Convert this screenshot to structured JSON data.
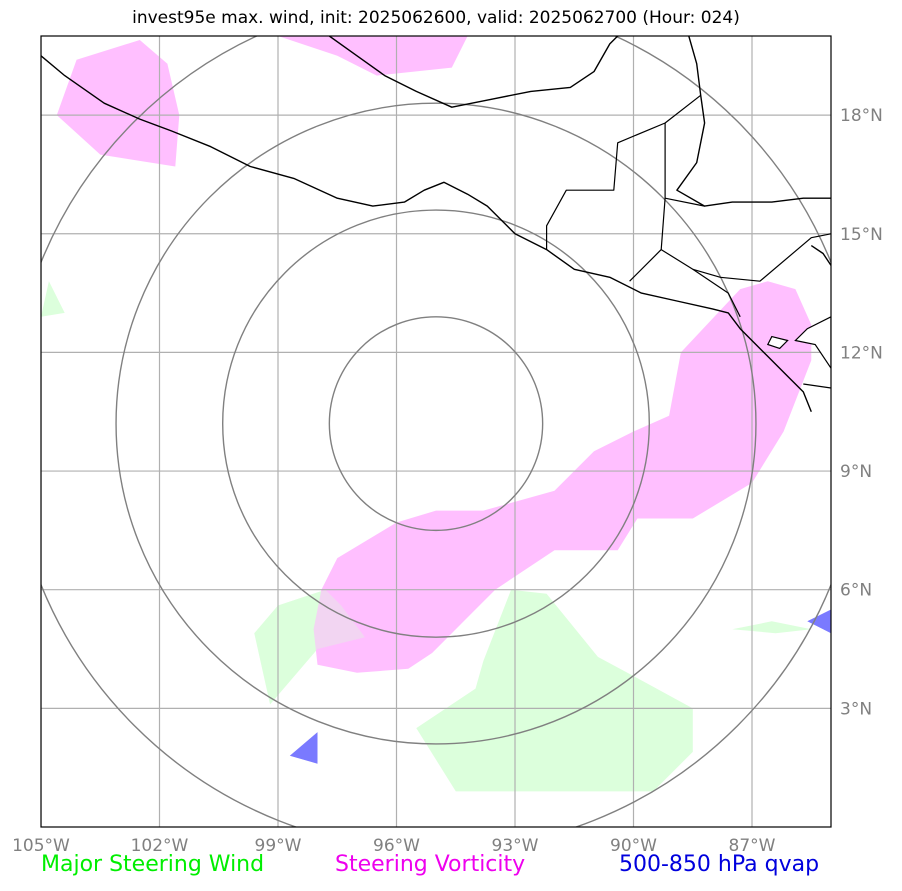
{
  "title": "invest95e max. wind, init: 2025062600, valid: 2025062700 (Hour: 024)",
  "colors": {
    "steering_wind_fill": "#dcffdc",
    "steering_vorticity_fill": "#ffbcff",
    "qvap_fill": "#7a7aff",
    "legend_wind": "#00ee00",
    "legend_vorticity": "#ee00ee",
    "legend_qvap": "#0000dd",
    "gridline": "#b0b0b0",
    "range_rings": "#808080",
    "coastline": "#000000",
    "tick_labels": "#808080"
  },
  "map": {
    "projection": "PlateCarree",
    "lon_range": [
      -105,
      -85
    ],
    "lat_range": [
      0,
      20
    ],
    "lon_ticks": [
      {
        "value": -105,
        "label": "105°W"
      },
      {
        "value": -102,
        "label": "102°W"
      },
      {
        "value": -99,
        "label": "99°W"
      },
      {
        "value": -96,
        "label": "96°W"
      },
      {
        "value": -93,
        "label": "93°W"
      },
      {
        "value": -90,
        "label": "90°W"
      },
      {
        "value": -87,
        "label": "87°W"
      }
    ],
    "lat_ticks": [
      {
        "value": 3,
        "label": "3°N"
      },
      {
        "value": 6,
        "label": "6°N"
      },
      {
        "value": 9,
        "label": "9°N"
      },
      {
        "value": 12,
        "label": "12°N"
      },
      {
        "value": 15,
        "label": "15°N"
      },
      {
        "value": 18,
        "label": "18°N"
      }
    ],
    "grid": true,
    "storm_center": {
      "lon": -95,
      "lat": 10.2
    },
    "range_rings_deg": [
      2.7,
      5.4,
      8.1,
      10.8
    ],
    "steering_wind_regions": [
      [
        [
          -93.1,
          6.0
        ],
        [
          -92.2,
          5.9
        ],
        [
          -90.9,
          4.3
        ],
        [
          -89.6,
          3.6
        ],
        [
          -88.5,
          3.0
        ],
        [
          -88.5,
          1.9
        ],
        [
          -89.5,
          0.9
        ],
        [
          -94.5,
          0.9
        ],
        [
          -95.5,
          2.5
        ],
        [
          -94.0,
          3.5
        ],
        [
          -93.8,
          4.2
        ]
      ],
      [
        [
          -97.8,
          6.0
        ],
        [
          -99.0,
          5.6
        ],
        [
          -99.6,
          4.9
        ],
        [
          -99.2,
          3.1
        ],
        [
          -98.0,
          4.5
        ],
        [
          -96.8,
          4.8
        ],
        [
          -97.4,
          5.6
        ]
      ],
      [
        [
          -104.8,
          13.8
        ],
        [
          -104.4,
          13.0
        ],
        [
          -105,
          12.9
        ]
      ],
      [
        [
          -87.5,
          5.0
        ],
        [
          -86.4,
          4.9
        ],
        [
          -85.5,
          5.0
        ],
        [
          -86.5,
          5.2
        ]
      ]
    ],
    "steering_vorticity_regions": [
      [
        [
          -96.0,
          7.7
        ],
        [
          -95.0,
          8.0
        ],
        [
          -93.8,
          8.0
        ],
        [
          -92.0,
          8.5
        ],
        [
          -91.0,
          9.5
        ],
        [
          -90.0,
          10.0
        ],
        [
          -89.1,
          10.4
        ],
        [
          -88.8,
          12.0
        ],
        [
          -87.3,
          13.6
        ],
        [
          -86.6,
          13.8
        ],
        [
          -85.9,
          13.6
        ],
        [
          -85.5,
          12.7
        ],
        [
          -85.5,
          11.8
        ],
        [
          -86.2,
          10.0
        ],
        [
          -87.0,
          8.7
        ],
        [
          -88.5,
          7.8
        ],
        [
          -89.9,
          7.8
        ],
        [
          -90.4,
          7.0
        ],
        [
          -92.0,
          7.0
        ],
        [
          -93.5,
          6.0
        ],
        [
          -94.2,
          5.3
        ],
        [
          -95.1,
          4.4
        ],
        [
          -95.7,
          4.0
        ],
        [
          -97.0,
          3.9
        ],
        [
          -98.0,
          4.1
        ],
        [
          -98.1,
          5.0
        ],
        [
          -97.9,
          6.0
        ],
        [
          -97.5,
          6.8
        ]
      ],
      [
        [
          -104.6,
          18.0
        ],
        [
          -104.1,
          19.4
        ],
        [
          -102.5,
          19.9
        ],
        [
          -101.8,
          19.3
        ],
        [
          -101.5,
          18.0
        ],
        [
          -101.6,
          16.7
        ],
        [
          -103.5,
          17.0
        ]
      ],
      [
        [
          -99.0,
          20.0
        ],
        [
          -97.5,
          19.5
        ],
        [
          -96.5,
          19.0
        ],
        [
          -94.6,
          19.2
        ],
        [
          -94.2,
          20.0
        ]
      ]
    ],
    "qvap_regions": [
      [
        [
          -98.0,
          2.4
        ],
        [
          -98.7,
          1.8
        ],
        [
          -98.0,
          1.6
        ]
      ],
      [
        [
          -85.6,
          5.2
        ],
        [
          -85.0,
          5.5
        ],
        [
          -85.0,
          4.9
        ]
      ]
    ],
    "coastlines": [
      [
        [
          -105,
          19.5
        ],
        [
          -104.4,
          19.0
        ],
        [
          -103.4,
          18.3
        ],
        [
          -102.5,
          17.9
        ],
        [
          -101.7,
          17.6
        ],
        [
          -100.7,
          17.2
        ],
        [
          -99.7,
          16.7
        ],
        [
          -98.6,
          16.4
        ],
        [
          -97.5,
          15.9
        ],
        [
          -96.6,
          15.7
        ],
        [
          -95.8,
          15.8
        ],
        [
          -95.3,
          16.1
        ],
        [
          -94.8,
          16.3
        ],
        [
          -94.2,
          16.0
        ],
        [
          -93.7,
          15.7
        ],
        [
          -93.0,
          15.0
        ],
        [
          -92.2,
          14.6
        ],
        [
          -91.5,
          14.1
        ],
        [
          -90.6,
          13.9
        ],
        [
          -89.8,
          13.5
        ],
        [
          -88.9,
          13.3
        ],
        [
          -88.0,
          13.1
        ],
        [
          -87.6,
          13.0
        ],
        [
          -87.3,
          12.6
        ],
        [
          -86.6,
          11.9
        ],
        [
          -86.0,
          11.3
        ],
        [
          -85.7,
          11.0
        ],
        [
          -85.5,
          10.5
        ]
      ],
      [
        [
          -97.7,
          20.0
        ],
        [
          -97.0,
          19.5
        ],
        [
          -96.3,
          19.0
        ],
        [
          -95.5,
          18.6
        ],
        [
          -94.6,
          18.2
        ],
        [
          -93.6,
          18.4
        ],
        [
          -92.6,
          18.6
        ],
        [
          -91.6,
          18.7
        ],
        [
          -91.0,
          19.1
        ],
        [
          -90.6,
          19.8
        ],
        [
          -90.4,
          20.0
        ]
      ],
      [
        [
          -88.6,
          20.0
        ],
        [
          -88.4,
          19.3
        ],
        [
          -88.3,
          18.5
        ],
        [
          -88.2,
          17.8
        ],
        [
          -88.4,
          16.8
        ],
        [
          -88.9,
          16.1
        ],
        [
          -88.2,
          15.7
        ],
        [
          -87.5,
          15.8
        ],
        [
          -86.5,
          15.8
        ],
        [
          -85.7,
          15.9
        ],
        [
          -85.0,
          15.9
        ]
      ],
      [
        [
          -85.0,
          14.2
        ],
        [
          -85.2,
          14.5
        ],
        [
          -85.5,
          14.7
        ]
      ]
    ],
    "borders": [
      [
        [
          -92.2,
          14.6
        ],
        [
          -92.2,
          15.2
        ],
        [
          -91.7,
          16.1
        ],
        [
          -90.5,
          16.1
        ],
        [
          -90.4,
          17.3
        ],
        [
          -89.2,
          17.8
        ],
        [
          -88.3,
          18.5
        ]
      ],
      [
        [
          -89.2,
          17.8
        ],
        [
          -89.2,
          15.9
        ],
        [
          -88.2,
          15.7
        ]
      ],
      [
        [
          -89.2,
          15.9
        ],
        [
          -89.3,
          14.6
        ],
        [
          -90.1,
          13.8
        ]
      ],
      [
        [
          -89.3,
          14.6
        ],
        [
          -88.5,
          14.1
        ],
        [
          -87.6,
          13.5
        ],
        [
          -87.3,
          12.9
        ]
      ],
      [
        [
          -88.5,
          14.1
        ],
        [
          -87.8,
          13.9
        ],
        [
          -86.8,
          13.8
        ],
        [
          -85.5,
          14.9
        ],
        [
          -85.0,
          15.0
        ]
      ],
      [
        [
          -85.7,
          11.2
        ],
        [
          -85.0,
          11.1
        ]
      ]
    ],
    "lakes": [
      [
        [
          -85.9,
          12.3
        ],
        [
          -85.4,
          12.2
        ],
        [
          -85.0,
          11.6
        ],
        [
          -85.0,
          12.9
        ],
        [
          -85.6,
          12.6
        ]
      ],
      [
        [
          -86.5,
          12.4
        ],
        [
          -86.1,
          12.3
        ],
        [
          -86.3,
          12.1
        ],
        [
          -86.6,
          12.2
        ]
      ]
    ]
  },
  "legend": {
    "wind": "Major Steering Wind",
    "vorticity": "Steering Vorticity",
    "qvap": "500-850 hPa qvap"
  }
}
